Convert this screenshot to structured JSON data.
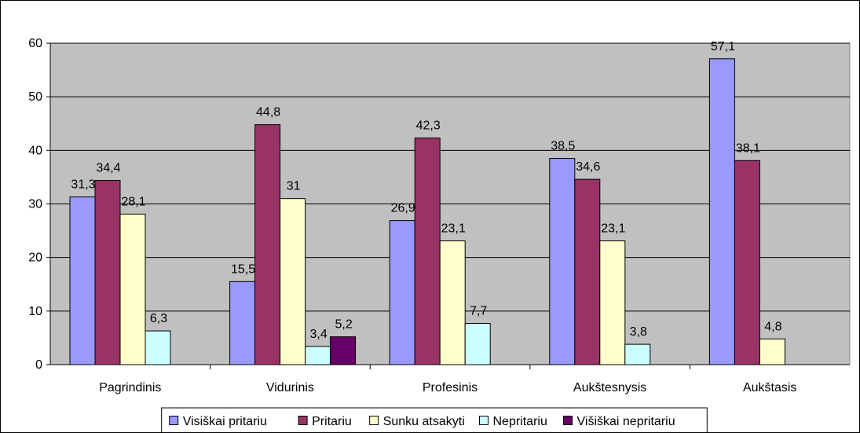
{
  "chart_data": {
    "type": "bar",
    "title": "",
    "xlabel": "",
    "ylabel": "",
    "ylim": [
      0,
      60
    ],
    "yticks": [
      0,
      10,
      20,
      30,
      40,
      50,
      60
    ],
    "grid": true,
    "plot_background": "#c0c0c0",
    "legend_position": "bottom",
    "categories": [
      "Pagrindinis",
      "Vidurinis",
      "Profesinis",
      "Aukštesnysis",
      "Aukštasis"
    ],
    "series": [
      {
        "name": "Visiškai pritariu",
        "color": "#9999ff",
        "values": [
          31.3,
          15.5,
          26.9,
          38.5,
          57.1
        ],
        "labels": [
          "31,3",
          "15,5",
          "26,9",
          "38,5",
          "57,1"
        ]
      },
      {
        "name": "Pritariu",
        "color": "#993366",
        "values": [
          34.4,
          44.8,
          42.3,
          34.6,
          38.1
        ],
        "labels": [
          "34,4",
          "44,8",
          "42,3",
          "34,6",
          "38,1"
        ]
      },
      {
        "name": "Sunku atsakyti",
        "color": "#ffffcc",
        "values": [
          28.1,
          31,
          23.1,
          23.1,
          4.8
        ],
        "labels": [
          "28,1",
          "31",
          "23,1",
          "23,1",
          "4,8"
        ]
      },
      {
        "name": "Nepritariu",
        "color": "#ccffff",
        "values": [
          6.3,
          3.4,
          7.7,
          3.8,
          null
        ],
        "labels": [
          "6,3",
          "3,4",
          "7,7",
          "3,8",
          ""
        ]
      },
      {
        "name": "Višiškai nepritariu",
        "color": "#660066",
        "values": [
          null,
          5.2,
          null,
          null,
          null
        ],
        "labels": [
          "",
          "5,2",
          "",
          "",
          ""
        ]
      }
    ]
  }
}
